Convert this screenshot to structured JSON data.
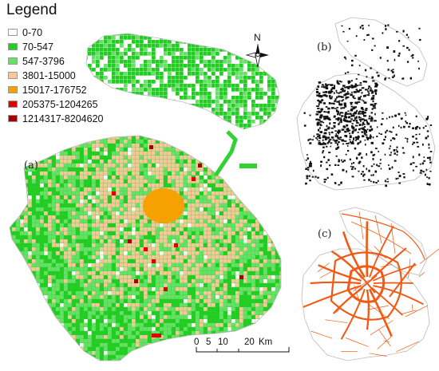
{
  "legend": {
    "title": "Legend",
    "items": [
      {
        "label": "0-70",
        "color": "#ffffff"
      },
      {
        "label": "70-547",
        "color": "#22cc22"
      },
      {
        "label": "547-3796",
        "color": "#66e066"
      },
      {
        "label": "3801-15000",
        "color": "#f5c89a"
      },
      {
        "label": "15017-176752",
        "color": "#f7a100"
      },
      {
        "label": "205375-1204265",
        "color": "#e00000"
      },
      {
        "label": "1214317-8204620",
        "color": "#a80000"
      }
    ]
  },
  "panels": {
    "a": "(a)",
    "b": "(b)",
    "c": "(c)"
  },
  "north_arrow": {
    "label": "N"
  },
  "scale_bar": {
    "ticks": [
      "0",
      "5",
      "10",
      "20"
    ],
    "unit": "Km"
  },
  "colors": {
    "green": "#22cc22",
    "light_green": "#66e066",
    "tan": "#f5c89a",
    "orange": "#f7a100",
    "red": "#e00000",
    "dark_red": "#a80000",
    "road": "#f05a14",
    "outline": "#bbbbbb"
  }
}
